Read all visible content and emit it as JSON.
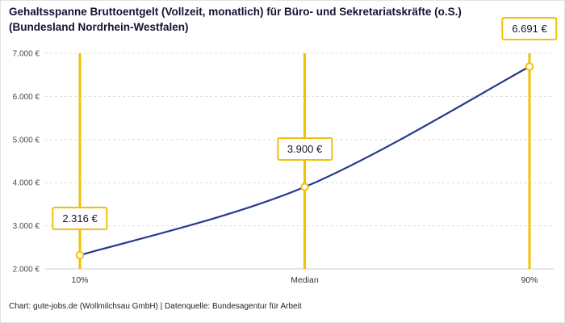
{
  "title": "Gehaltsspanne Bruttoentgelt (Vollzeit, monatlich) für Büro- und Sekretariatskräfte (o.S.) (Bundesland Nordrhein-Westfalen)",
  "footer": "Chart: gute-jobs.de (Wollmilchsau GmbH) | Datenquelle: Bundesagentur für Arbeit",
  "colors": {
    "line": "#24388f",
    "accent": "#f2c200",
    "grid": "#dcdcdc",
    "axis_line": "#cccccc",
    "axis_text": "#4a4a4a",
    "title_text": "#131334"
  },
  "chart_data": {
    "type": "line",
    "title": "Gehaltsspanne Bruttoentgelt (Vollzeit, monatlich) für Büro- und Sekretariatskräfte (o.S.) (Bundesland Nordrhein-Westfalen)",
    "categories": [
      "10%",
      "Median",
      "90%"
    ],
    "values": [
      2316,
      3900,
      6691
    ],
    "value_labels": [
      "2.316 €",
      "3.900 €",
      "6.691 €"
    ],
    "xlabel": "",
    "ylabel": "",
    "ylim": [
      2000,
      7000
    ],
    "yticks": [
      2000,
      3000,
      4000,
      5000,
      6000,
      7000
    ],
    "ytick_labels": [
      "2.000 €",
      "3.000 €",
      "4.000 €",
      "5.000 €",
      "6.000 €",
      "7.000 €"
    ],
    "grid": true,
    "legend": "none",
    "series": [
      {
        "name": "Bruttoentgelt",
        "values": [
          2316,
          3900,
          6691
        ]
      }
    ]
  }
}
